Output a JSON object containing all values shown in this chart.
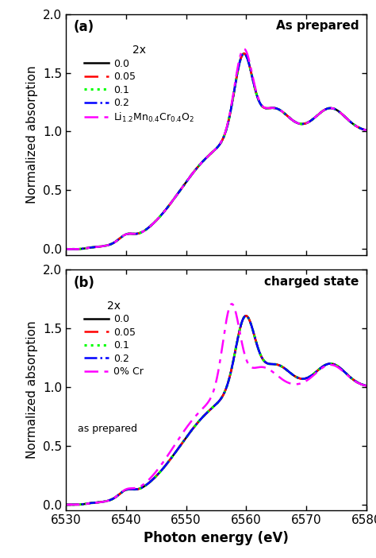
{
  "xmin": 6530,
  "xmax": 6580,
  "ymin": -0.05,
  "ymax": 2.0,
  "xlabel": "Photon energy (eV)",
  "ylabel": "Normalized absorption",
  "panel_a_title": "As prepared",
  "panel_b_title": "charged state",
  "panel_a_label": "(a)",
  "panel_b_label": "(b)",
  "legend_header": "2x",
  "yticks": [
    0.0,
    0.5,
    1.0,
    1.5,
    2.0
  ],
  "xticks": [
    6530,
    6540,
    6550,
    6560,
    6570,
    6580
  ]
}
